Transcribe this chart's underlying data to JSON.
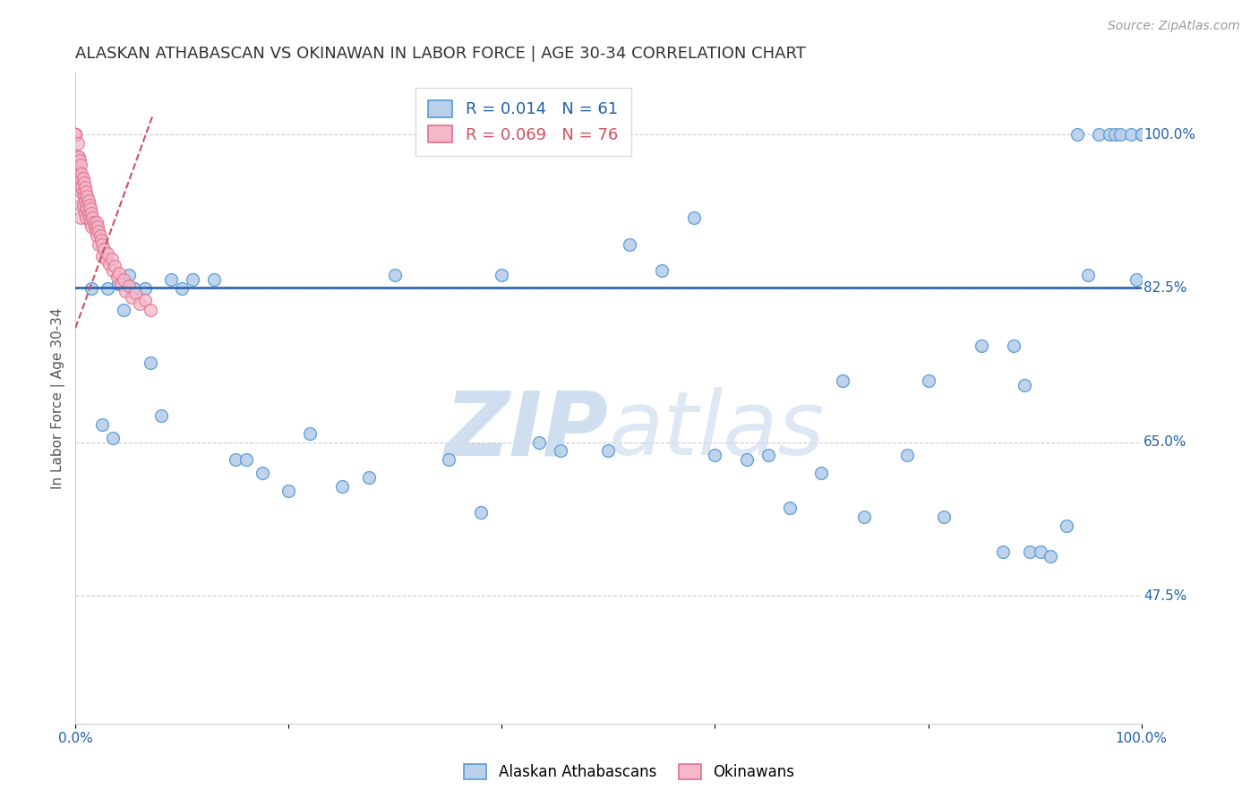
{
  "title": "ALASKAN ATHABASCAN VS OKINAWAN IN LABOR FORCE | AGE 30-34 CORRELATION CHART",
  "source": "Source: ZipAtlas.com",
  "ylabel": "In Labor Force | Age 30-34",
  "ytick_labels": [
    "47.5%",
    "65.0%",
    "82.5%",
    "100.0%"
  ],
  "ytick_values": [
    0.475,
    0.65,
    0.825,
    1.0
  ],
  "legend_blue_r": "0.014",
  "legend_blue_n": "61",
  "legend_pink_r": "0.069",
  "legend_pink_n": "76",
  "legend_label_blue": "Alaskan Athabascans",
  "legend_label_pink": "Okinawans",
  "blue_color": "#b8d0ea",
  "blue_edge": "#5b9bd5",
  "pink_color": "#f4b8c8",
  "pink_edge": "#e07090",
  "trend_blue_color": "#2060a8",
  "trend_pink_color": "#d05060",
  "watermark_color": "#d0dff0",
  "blue_x": [
    0.015,
    0.025,
    0.03,
    0.035,
    0.04,
    0.045,
    0.05,
    0.055,
    0.065,
    0.07,
    0.08,
    0.09,
    0.1,
    0.11,
    0.13,
    0.15,
    0.16,
    0.175,
    0.2,
    0.22,
    0.25,
    0.275,
    0.3,
    0.35,
    0.38,
    0.4,
    0.435,
    0.455,
    0.5,
    0.52,
    0.55,
    0.58,
    0.6,
    0.63,
    0.65,
    0.67,
    0.7,
    0.72,
    0.74,
    0.78,
    0.8,
    0.815,
    0.85,
    0.87,
    0.88,
    0.89,
    0.895,
    0.905,
    0.915,
    0.93,
    0.94,
    0.95,
    0.96,
    0.97,
    0.975,
    0.98,
    0.99,
    0.995,
    1.0,
    1.0,
    1.0
  ],
  "blue_y": [
    0.825,
    0.67,
    0.825,
    0.655,
    0.83,
    0.8,
    0.84,
    0.825,
    0.825,
    0.74,
    0.68,
    0.835,
    0.825,
    0.835,
    0.835,
    0.63,
    0.63,
    0.615,
    0.595,
    0.66,
    0.6,
    0.61,
    0.84,
    0.63,
    0.57,
    0.84,
    0.65,
    0.64,
    0.64,
    0.875,
    0.845,
    0.905,
    0.635,
    0.63,
    0.635,
    0.575,
    0.615,
    0.72,
    0.565,
    0.635,
    0.72,
    0.565,
    0.76,
    0.525,
    0.76,
    0.715,
    0.525,
    0.525,
    0.52,
    0.555,
    1.0,
    0.84,
    1.0,
    1.0,
    1.0,
    1.0,
    1.0,
    0.835,
    1.0,
    1.0,
    1.0
  ],
  "pink_x": [
    0.0,
    0.0,
    0.0,
    0.0,
    0.0,
    0.0,
    0.0,
    0.002,
    0.002,
    0.002,
    0.002,
    0.003,
    0.003,
    0.003,
    0.004,
    0.004,
    0.004,
    0.005,
    0.005,
    0.005,
    0.005,
    0.005,
    0.006,
    0.006,
    0.007,
    0.007,
    0.007,
    0.008,
    0.008,
    0.009,
    0.009,
    0.009,
    0.01,
    0.01,
    0.01,
    0.011,
    0.011,
    0.012,
    0.012,
    0.013,
    0.013,
    0.014,
    0.014,
    0.015,
    0.015,
    0.016,
    0.017,
    0.018,
    0.019,
    0.02,
    0.02,
    0.021,
    0.022,
    0.022,
    0.023,
    0.024,
    0.025,
    0.025,
    0.027,
    0.028,
    0.03,
    0.032,
    0.034,
    0.035,
    0.037,
    0.039,
    0.041,
    0.043,
    0.045,
    0.047,
    0.05,
    0.053,
    0.056,
    0.06,
    0.065,
    0.07
  ],
  "pink_y": [
    1.0,
    1.0,
    1.0,
    1.0,
    1.0,
    1.0,
    1.0,
    0.99,
    0.975,
    0.96,
    0.945,
    0.975,
    0.96,
    0.945,
    0.97,
    0.955,
    0.94,
    0.965,
    0.95,
    0.935,
    0.92,
    0.905,
    0.955,
    0.94,
    0.95,
    0.935,
    0.92,
    0.945,
    0.93,
    0.94,
    0.925,
    0.91,
    0.935,
    0.92,
    0.905,
    0.93,
    0.915,
    0.925,
    0.91,
    0.92,
    0.905,
    0.915,
    0.9,
    0.91,
    0.895,
    0.905,
    0.9,
    0.895,
    0.89,
    0.9,
    0.885,
    0.895,
    0.89,
    0.875,
    0.885,
    0.88,
    0.875,
    0.862,
    0.87,
    0.858,
    0.865,
    0.852,
    0.858,
    0.845,
    0.85,
    0.838,
    0.842,
    0.83,
    0.835,
    0.822,
    0.828,
    0.815,
    0.82,
    0.808,
    0.812,
    0.8
  ],
  "blue_trend_x": [
    0.0,
    1.0
  ],
  "blue_trend_y": [
    0.8255,
    0.8255
  ],
  "pink_trend_x": [
    0.0,
    0.072
  ],
  "pink_trend_y": [
    0.78,
    1.02
  ],
  "xmin": 0.0,
  "xmax": 1.0,
  "ymin": 0.33,
  "ymax": 1.07,
  "background_color": "#ffffff",
  "grid_color": "#cccccc",
  "title_fontsize": 13,
  "axis_label_fontsize": 11,
  "tick_fontsize": 11,
  "source_fontsize": 10
}
